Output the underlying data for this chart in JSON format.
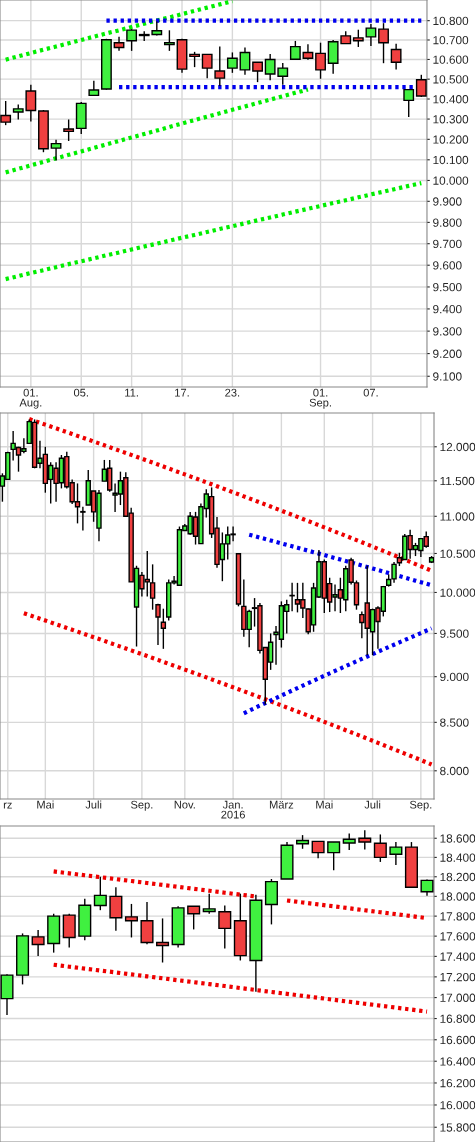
{
  "chart_data": [
    {
      "type": "candlestick",
      "log": "y",
      "grid": true,
      "categories": [
        null,
        null,
        "01.\nAug.",
        null,
        null,
        null,
        "05.",
        null,
        null,
        null,
        "11.",
        null,
        null,
        null,
        "17.",
        null,
        null,
        null,
        "23.",
        null,
        null,
        null,
        null,
        null,
        null,
        "01.\nSep.",
        null,
        null,
        null,
        "07.",
        null,
        null,
        null,
        null
      ],
      "ohlc": [
        [
          10318,
          10390,
          10270,
          10285
        ],
        [
          10335,
          10372,
          10298,
          10351
        ],
        [
          10440,
          10472,
          10288,
          10343
        ],
        [
          10340,
          10345,
          10137,
          10154
        ],
        [
          10157,
          10198,
          10097,
          10179
        ],
        [
          10251,
          10298,
          10192,
          10239
        ],
        [
          10254,
          10385,
          10226,
          10378
        ],
        [
          10418,
          10492,
          10415,
          10445
        ],
        [
          10450,
          10706,
          10447,
          10701
        ],
        [
          10686,
          10716,
          10644,
          10661
        ],
        [
          10696,
          10756,
          10644,
          10751
        ],
        [
          10723,
          10745,
          10695,
          10728
        ],
        [
          10728,
          10795,
          10723,
          10748
        ],
        [
          10676,
          10750,
          10644,
          10686
        ],
        [
          10701,
          10706,
          10532,
          10551
        ],
        [
          10626,
          10639,
          10561,
          10616
        ],
        [
          10626,
          10626,
          10505,
          10556
        ],
        [
          10541,
          10666,
          10465,
          10505
        ],
        [
          10556,
          10636,
          10532,
          10606
        ],
        [
          10547,
          10661,
          10522,
          10636
        ],
        [
          10586,
          10586,
          10485,
          10541
        ],
        [
          10526,
          10628,
          10494,
          10600
        ],
        [
          10515,
          10582,
          10472,
          10556
        ],
        [
          10601,
          10695,
          10601,
          10666
        ],
        [
          10636,
          10678,
          10599,
          10606
        ],
        [
          10631,
          10686,
          10502,
          10547
        ],
        [
          10581,
          10700,
          10527,
          10691
        ],
        [
          10721,
          10745,
          10681,
          10681
        ],
        [
          10711,
          10753,
          10664,
          10696
        ],
        [
          10716,
          10783,
          10669,
          10761
        ],
        [
          10756,
          10787,
          10581,
          10686
        ],
        [
          10651,
          10681,
          10549,
          10586
        ],
        [
          10393,
          10447,
          10310,
          10447
        ],
        [
          10497,
          10522,
          10410,
          10415
        ]
      ],
      "colors": [
        "#f04040",
        "#40f040",
        "#f04040",
        "#f04040",
        "#40f040",
        "#f04040",
        "#40f040",
        "#40f040",
        "#40f040",
        "#f04040",
        "#40f040",
        "#000000",
        "#40f040",
        "#40f040",
        "#f04040",
        "#f04040",
        "#f04040",
        "#f04040",
        "#40f040",
        "#40f040",
        "#f04040",
        "#40f040",
        "#40f040",
        "#40f040",
        "#f04040",
        "#f04040",
        "#40f040",
        "#f04040",
        "#f04040",
        "#40f040",
        "#f04040",
        "#f04040",
        "#40f040",
        "#f04040"
      ],
      "series": [
        {
          "type": "line",
          "color": "#00ee00",
          "line_style": "dotted",
          "values": [
            10599,
            10616,
            10633,
            10650,
            10666,
            10683,
            10700,
            10717,
            10734,
            10750,
            10767,
            10784,
            10801,
            10817,
            10834,
            10851,
            10868,
            10885,
            10902,
            null,
            null,
            null,
            null,
            null,
            null,
            null,
            null,
            null,
            null,
            null,
            null,
            null,
            null,
            null
          ]
        },
        {
          "type": "line",
          "color": "#00ee00",
          "line_style": "dotted",
          "values": [
            10039,
            10056,
            10073,
            10090,
            10107,
            10124,
            10141,
            10158,
            10175,
            10192,
            10209,
            10226,
            10243,
            10261,
            10278,
            10295,
            10312,
            10329,
            10346,
            10363,
            10380,
            10397,
            10414,
            10431,
            10448,
            null,
            null,
            null,
            null,
            null,
            null,
            null,
            null,
            null
          ]
        },
        {
          "type": "line",
          "color": "#00ee00",
          "line_style": "dotted",
          "values": [
            9536,
            9550,
            9564,
            9577,
            9591,
            9605,
            9618,
            9632,
            9646,
            9659,
            9673,
            9687,
            9700,
            9714,
            9728,
            9741,
            9755,
            9769,
            9782,
            9796,
            9810,
            9823,
            9837,
            9851,
            9864,
            9878,
            9892,
            9905,
            9919,
            9933,
            9946,
            9960,
            9974,
            9987
          ]
        },
        {
          "type": "line",
          "color": "#0000ee",
          "line_style": "dotted",
          "values": [
            null,
            null,
            null,
            null,
            null,
            null,
            null,
            null,
            10800,
            10800,
            10800,
            10800,
            10800,
            10800,
            10800,
            10800,
            10800,
            10800,
            10800,
            10800,
            10800,
            10800,
            10800,
            10800,
            10800,
            10800,
            10800,
            10800,
            10800,
            10800,
            10800,
            10800,
            10800,
            10800
          ]
        },
        {
          "type": "line",
          "color": "#0000ee",
          "line_style": "dotted",
          "values": [
            null,
            null,
            null,
            null,
            null,
            null,
            null,
            null,
            null,
            10460,
            10460,
            10460,
            10460,
            10460,
            10460,
            10460,
            10460,
            10460,
            10460,
            10460,
            10460,
            10460,
            10460,
            10460,
            10460,
            10460,
            10460,
            10460,
            10460,
            10460,
            10460,
            10460,
            10460,
            10460
          ]
        }
      ],
      "ylim": [
        9053,
        10908
      ],
      "yticks": [
        {
          "value": 9100,
          "label": "9.100"
        },
        {
          "value": 9200,
          "label": "9.200"
        },
        {
          "value": 9300,
          "label": "9.300"
        },
        {
          "value": 9400,
          "label": "9.400"
        },
        {
          "value": 9500,
          "label": "9.500"
        },
        {
          "value": 9600,
          "label": "9.600"
        },
        {
          "value": 9700,
          "label": "9.700"
        },
        {
          "value": 9800,
          "label": "9.800"
        },
        {
          "value": 9900,
          "label": "9.900"
        },
        {
          "value": 10000,
          "label": "10.000"
        },
        {
          "value": 10100,
          "label": "10.100"
        },
        {
          "value": 10200,
          "label": "10.200"
        },
        {
          "value": 10300,
          "label": "10.300"
        },
        {
          "value": 10400,
          "label": "10.400"
        },
        {
          "value": 10500,
          "label": "10.500"
        },
        {
          "value": 10600,
          "label": "10.600"
        },
        {
          "value": 10700,
          "label": "10.700"
        },
        {
          "value": 10800,
          "label": "10.800"
        }
      ]
    },
    {
      "type": "candlestick",
      "log": "y",
      "grid": true,
      "categories": [
        null,
        "rz",
        null,
        null,
        null,
        null,
        null,
        null,
        "Mai",
        null,
        null,
        null,
        null,
        null,
        null,
        null,
        null,
        "Juli",
        null,
        null,
        null,
        null,
        null,
        null,
        null,
        null,
        "Sep.",
        null,
        null,
        null,
        null,
        null,
        null,
        null,
        "Nov.",
        null,
        null,
        null,
        null,
        null,
        null,
        null,
        null,
        "Jan.\n2016",
        null,
        null,
        null,
        null,
        null,
        null,
        null,
        null,
        "März",
        null,
        null,
        null,
        null,
        null,
        null,
        null,
        "Mai",
        null,
        null,
        null,
        null,
        null,
        null,
        null,
        null,
        "Juli",
        null,
        null,
        null,
        null,
        null,
        null,
        null,
        null,
        "Sep.",
        null,
        null
      ],
      "ohlc": [
        [
          11424,
          11608,
          11203,
          11569
        ],
        [
          11520,
          11926,
          11510,
          11912
        ],
        [
          11961,
          12240,
          11794,
          12051
        ],
        [
          11990,
          12000,
          11632,
          11878
        ],
        [
          11931,
          12128,
          11902,
          11971
        ],
        [
          12051,
          12418,
          12051,
          12383
        ],
        [
          12372,
          12418,
          11681,
          11696
        ],
        [
          11755,
          12092,
          11681,
          11828
        ],
        [
          11887,
          12000,
          11330,
          11462
        ],
        [
          11520,
          11770,
          11179,
          11721
        ],
        [
          11681,
          11770,
          11203,
          11462
        ],
        [
          11472,
          11877,
          11391,
          11828
        ],
        [
          11853,
          11926,
          11391,
          11415
        ],
        [
          11472,
          11520,
          11170,
          11203
        ],
        [
          11203,
          11462,
          10903,
          11132
        ],
        [
          11065,
          11132,
          10807,
          11058
        ],
        [
          11156,
          11657,
          11156,
          11500
        ],
        [
          11354,
          11354,
          10925,
          11061
        ],
        [
          10838,
          11368,
          10662,
          11321
        ],
        [
          11495,
          11804,
          11495,
          11667
        ],
        [
          11681,
          11804,
          11344,
          11368
        ],
        [
          11297,
          11462,
          11061,
          11321
        ],
        [
          11311,
          11632,
          11156,
          11500
        ],
        [
          11544,
          11623,
          11000,
          11000
        ],
        [
          11044,
          11117,
          10134,
          10134
        ],
        [
          9820,
          10340,
          9346,
          10306
        ],
        [
          10216,
          10259,
          9951,
          10047
        ],
        [
          10164,
          10531,
          9951,
          10134
        ],
        [
          10121,
          10358,
          9787,
          9930
        ],
        [
          9848,
          9860,
          9365,
          9697
        ],
        [
          9635,
          9799,
          9319,
          9562
        ],
        [
          9697,
          10164,
          9656,
          10121
        ],
        [
          10121,
          10207,
          10099,
          10142
        ],
        [
          10091,
          10860,
          10091,
          10816
        ],
        [
          10807,
          10895,
          10807,
          10868
        ],
        [
          10763,
          11061,
          10750,
          11000
        ],
        [
          10991,
          11061,
          10618,
          10728
        ],
        [
          10631,
          11179,
          10631,
          11132
        ],
        [
          11108,
          11377,
          10982,
          11311
        ],
        [
          11274,
          11405,
          10706,
          10763
        ],
        [
          10838,
          10991,
          10315,
          10358
        ],
        [
          10422,
          10780,
          10142,
          10627
        ],
        [
          10627,
          10860,
          10422,
          10745
        ],
        [
          10750,
          10860,
          10662,
          10758
        ],
        [
          10496,
          10496,
          9828,
          9856
        ],
        [
          9828,
          10164,
          9462,
          9549
        ],
        [
          9549,
          9787,
          9337,
          9766
        ],
        [
          9803,
          9930,
          9582,
          9810
        ],
        [
          9836,
          9870,
          9265,
          9301
        ],
        [
          9334,
          9334,
          8692,
          8971
        ],
        [
          9165,
          9500,
          9077,
          9396
        ],
        [
          9488,
          9590,
          9135,
          9515
        ],
        [
          9431,
          9889,
          9334,
          9836
        ],
        [
          9766,
          9910,
          9500,
          9848
        ],
        [
          9959,
          10121,
          9767,
          9963
        ],
        [
          9910,
          10121,
          9754,
          9856
        ],
        [
          9910,
          10121,
          9685,
          9807
        ],
        [
          9795,
          9800,
          9490,
          9520
        ],
        [
          9602,
          10121,
          9520,
          10056
        ],
        [
          9943,
          10545,
          9930,
          10392
        ],
        [
          10392,
          10422,
          9746,
          9930
        ],
        [
          10112,
          10186,
          9758,
          9881
        ],
        [
          9943,
          10099,
          9767,
          9971
        ],
        [
          10034,
          10186,
          9746,
          9930
        ],
        [
          9910,
          10340,
          9767,
          10302
        ],
        [
          10414,
          10444,
          10099,
          10129
        ],
        [
          10121,
          10151,
          9787,
          9848
        ],
        [
          9726,
          9766,
          9442,
          9631
        ],
        [
          9869,
          10340,
          9245,
          9562
        ],
        [
          9520,
          9800,
          9245,
          9787
        ],
        [
          9807,
          9830,
          9319,
          9643
        ],
        [
          9767,
          10082,
          9705,
          10074
        ],
        [
          10091,
          10229,
          10074,
          10164
        ],
        [
          10172,
          10388,
          10121,
          10358
        ],
        [
          10444,
          10509,
          10336,
          10379
        ],
        [
          10422,
          10759,
          10422,
          10728
        ],
        [
          10737,
          10816,
          10431,
          10552
        ],
        [
          10552,
          10640,
          10466,
          10604
        ],
        [
          10539,
          10706,
          10453,
          10697
        ],
        [
          10724,
          10794,
          10574,
          10596
        ],
        [
          10388,
          10466,
          10375,
          10444
        ]
      ],
      "colors": [
        "#40f040",
        "#40f040",
        "#40f040",
        "#f04040",
        "#40f040",
        "#40f040",
        "#f04040",
        "#40f040",
        "#f04040",
        "#40f040",
        "#f04040",
        "#40f040",
        "#f04040",
        "#f04040",
        "#f04040",
        "#000000",
        "#40f040",
        "#f04040",
        "#40f040",
        "#40f040",
        "#f04040",
        "#40f040",
        "#40f040",
        "#f04040",
        "#f04040",
        "#40f040",
        "#f04040",
        "#f04040",
        "#f04040",
        "#f04040",
        "#f04040",
        "#40f040",
        "#40f040",
        "#40f040",
        "#40f040",
        "#40f040",
        "#f04040",
        "#40f040",
        "#40f040",
        "#f04040",
        "#f04040",
        "#40f040",
        "#40f040",
        "#000000",
        "#f04040",
        "#f04040",
        "#40f040",
        "#000000",
        "#f04040",
        "#f04040",
        "#40f040",
        "#40f040",
        "#40f040",
        "#40f040",
        "#000000",
        "#f04040",
        "#f04040",
        "#f04040",
        "#40f040",
        "#40f040",
        "#f04040",
        "#f04040",
        "#40f040",
        "#f04040",
        "#40f040",
        "#f04040",
        "#f04040",
        "#f04040",
        "#f04040",
        "#40f040",
        "#f04040",
        "#40f040",
        "#40f040",
        "#40f040",
        "#f04040",
        "#40f040",
        "#f04040",
        "#40f040",
        "#40f040",
        "#f04040",
        "#40f040"
      ],
      "series": [
        {
          "type": "line",
          "color": "#ee0000",
          "line_style": "dotted",
          "values": [
            null,
            null,
            null,
            null,
            null,
            12423,
            12394,
            12366,
            12337,
            12308,
            12280,
            12251,
            12223,
            12194,
            12165,
            12137,
            12108,
            12079,
            12051,
            12022,
            11994,
            11965,
            11936,
            11908,
            11879,
            11850,
            11822,
            11793,
            11765,
            11736,
            11707,
            11679,
            11650,
            11621,
            11593,
            11564,
            11536,
            11507,
            11478,
            11450,
            11421,
            11393,
            11364,
            11335,
            11307,
            11278,
            11249,
            11221,
            11192,
            11164,
            11135,
            11106,
            11078,
            11049,
            11020,
            10992,
            10963,
            10935,
            10906,
            10877,
            10849,
            10820,
            10791,
            10763,
            10734,
            10706,
            10677,
            10648,
            10620,
            10591,
            10562,
            10534,
            10505,
            10477,
            10448,
            10419,
            10391,
            10362,
            10333,
            10305,
            10276
          ]
        },
        {
          "type": "line",
          "color": "#ee0000",
          "line_style": "dotted",
          "values": [
            null,
            null,
            null,
            null,
            9743,
            9721,
            9699,
            9677,
            9655,
            9633,
            9610,
            9588,
            9566,
            9544,
            9522,
            9500,
            9478,
            9456,
            9434,
            9412,
            9389,
            9367,
            9345,
            9323,
            9301,
            9279,
            9257,
            9235,
            9213,
            9191,
            9168,
            9146,
            9124,
            9102,
            9080,
            9058,
            9036,
            9014,
            8992,
            8970,
            8947,
            8925,
            8903,
            8881,
            8859,
            8837,
            8815,
            8793,
            8771,
            8749,
            8726,
            8704,
            8682,
            8660,
            8638,
            8616,
            8594,
            8572,
            8550,
            8528,
            8505,
            8483,
            8461,
            8439,
            8417,
            8395,
            8373,
            8351,
            8329,
            8307,
            8284,
            8262,
            8240,
            8218,
            8196,
            8174,
            8152,
            8130,
            8108,
            8086,
            8063
          ]
        },
        {
          "type": "line",
          "color": "#0000ee",
          "line_style": "dotted",
          "values": [
            null,
            null,
            null,
            null,
            null,
            null,
            null,
            null,
            null,
            null,
            null,
            null,
            null,
            null,
            null,
            null,
            null,
            null,
            null,
            null,
            null,
            null,
            null,
            null,
            null,
            null,
            null,
            null,
            null,
            null,
            null,
            null,
            null,
            null,
            null,
            null,
            null,
            null,
            null,
            null,
            null,
            null,
            null,
            null,
            null,
            null,
            10750,
            10731,
            10711,
            10692,
            10672,
            10653,
            10634,
            10614,
            10595,
            10576,
            10556,
            10537,
            10517,
            10498,
            10479,
            10459,
            10440,
            10421,
            10401,
            10382,
            10362,
            10343,
            10324,
            10304,
            10285,
            10266,
            10246,
            10227,
            10207,
            10188,
            10169,
            10149,
            10130,
            10111,
            10091
          ]
        },
        {
          "type": "line",
          "color": "#0000ee",
          "line_style": "dotted",
          "values": [
            null,
            null,
            null,
            null,
            null,
            null,
            null,
            null,
            null,
            null,
            null,
            null,
            null,
            null,
            null,
            null,
            null,
            null,
            null,
            null,
            null,
            null,
            null,
            null,
            null,
            null,
            null,
            null,
            null,
            null,
            null,
            null,
            null,
            null,
            null,
            null,
            null,
            null,
            null,
            null,
            null,
            null,
            null,
            null,
            null,
            8597,
            8625,
            8652,
            8680,
            8707,
            8735,
            8762,
            8790,
            8817,
            8845,
            8872,
            8900,
            8927,
            8955,
            8982,
            9010,
            9037,
            9065,
            9092,
            9120,
            9147,
            9175,
            9202,
            9230,
            9257,
            9285,
            9312,
            9340,
            9367,
            9395,
            9422,
            9450,
            9477,
            9505,
            9532,
            9560
          ]
        }
      ],
      "ylim": [
        7722,
        12517
      ],
      "yticks": [
        {
          "value": 8000,
          "label": "8.000"
        },
        {
          "value": 8500,
          "label": "8.500"
        },
        {
          "value": 9000,
          "label": "9.000"
        },
        {
          "value": 9500,
          "label": "9.500"
        },
        {
          "value": 10000,
          "label": "10.000"
        },
        {
          "value": 10500,
          "label": "10.500"
        },
        {
          "value": 11000,
          "label": "11.000"
        },
        {
          "value": 11500,
          "label": "11.500"
        },
        {
          "value": 12000,
          "label": "12.000"
        }
      ]
    },
    {
      "type": "candlestick",
      "log": "y",
      "grid": true,
      "tick_labels": "y",
      "categories": [
        null,
        null,
        null,
        null,
        null,
        null,
        null,
        null,
        null,
        null,
        null,
        null,
        null,
        null,
        null,
        null,
        null,
        null,
        null,
        null,
        null,
        null,
        null,
        null,
        null,
        null,
        null,
        null
      ],
      "ohlc": [
        [
          16990,
          17225,
          16833,
          17217
        ],
        [
          17217,
          17627,
          17127,
          17603
        ],
        [
          17593,
          17660,
          17403,
          17517
        ],
        [
          17527,
          17824,
          17437,
          17800
        ],
        [
          17810,
          17824,
          17487,
          17587
        ],
        [
          17600,
          17976,
          17560,
          17910
        ],
        [
          17907,
          18200,
          17860,
          18010
        ],
        [
          18000,
          18093,
          17653,
          17783
        ],
        [
          17793,
          17923,
          17587,
          17753
        ],
        [
          17753,
          17943,
          17520,
          17537
        ],
        [
          17537,
          17777,
          17340,
          17507
        ],
        [
          17517,
          17900,
          17487,
          17883
        ],
        [
          17900,
          17900,
          17667,
          17824
        ],
        [
          17847,
          18027,
          17824,
          17873
        ],
        [
          17844,
          17907,
          17477,
          17677
        ],
        [
          17753,
          18027,
          17360,
          17407
        ],
        [
          17360,
          18017,
          17057,
          17960
        ],
        [
          17917,
          18177,
          17717,
          18150
        ],
        [
          18177,
          18560,
          18177,
          18527
        ],
        [
          18543,
          18633,
          18490,
          18577
        ],
        [
          18567,
          18567,
          18390,
          18450
        ],
        [
          18450,
          18560,
          18267,
          18560
        ],
        [
          18550,
          18650,
          18477,
          18590
        ],
        [
          18600,
          18683,
          18483,
          18560
        ],
        [
          18547,
          18640,
          18353,
          18400
        ],
        [
          18433,
          18560,
          18320,
          18507
        ],
        [
          18507,
          18560,
          18093,
          18093
        ],
        [
          18047,
          18173,
          18007,
          18163
        ]
      ],
      "colors": [
        "#40f040",
        "#40f040",
        "#f04040",
        "#40f040",
        "#f04040",
        "#40f040",
        "#40f040",
        "#f04040",
        "#f04040",
        "#f04040",
        "#f04040",
        "#40f040",
        "#f04040",
        "#40f040",
        "#f04040",
        "#f04040",
        "#40f040",
        "#40f040",
        "#40f040",
        "#40f040",
        "#f04040",
        "#40f040",
        "#40f040",
        "#f04040",
        "#f04040",
        "#40f040",
        "#f04040",
        "#40f040"
      ],
      "series": [
        {
          "type": "line",
          "color": "#ee0000",
          "line_style": "dotted",
          "values": [
            null,
            null,
            null,
            18255,
            18235,
            18215,
            18196,
            18176,
            18156,
            18136,
            18116,
            18097,
            18077,
            18057,
            18037,
            18017,
            17998,
            null,
            17958,
            17938,
            17918,
            17899,
            17879,
            17859,
            17839,
            17820,
            17800,
            17780
          ]
        },
        {
          "type": "line",
          "color": "#ee0000",
          "line_style": "dotted",
          "values": [
            null,
            null,
            null,
            17318,
            17299,
            17280,
            17262,
            17243,
            17224,
            17205,
            17186,
            17167,
            17149,
            17130,
            17111,
            17092,
            17073,
            17054,
            17036,
            17017,
            16998,
            16979,
            16960,
            16941,
            16923,
            16904,
            16885,
            16866
          ]
        }
      ],
      "ylim": [
        15669,
        18729
      ],
      "yticks": [
        {
          "value": 15800,
          "label": "15.800"
        },
        {
          "value": 16000,
          "label": "16.000"
        },
        {
          "value": 16200,
          "label": "16.200"
        },
        {
          "value": 16400,
          "label": "16.400"
        },
        {
          "value": 16600,
          "label": "16.600"
        },
        {
          "value": 16800,
          "label": "16.800"
        },
        {
          "value": 17000,
          "label": "17.000"
        },
        {
          "value": 17200,
          "label": "17.200"
        },
        {
          "value": 17400,
          "label": "17.400"
        },
        {
          "value": 17600,
          "label": "17.600"
        },
        {
          "value": 17800,
          "label": "17.800"
        },
        {
          "value": 18000,
          "label": "18.000"
        },
        {
          "value": 18200,
          "label": "18.200"
        },
        {
          "value": 18400,
          "label": "18.400"
        },
        {
          "value": 18600,
          "label": "18.600"
        }
      ]
    }
  ]
}
